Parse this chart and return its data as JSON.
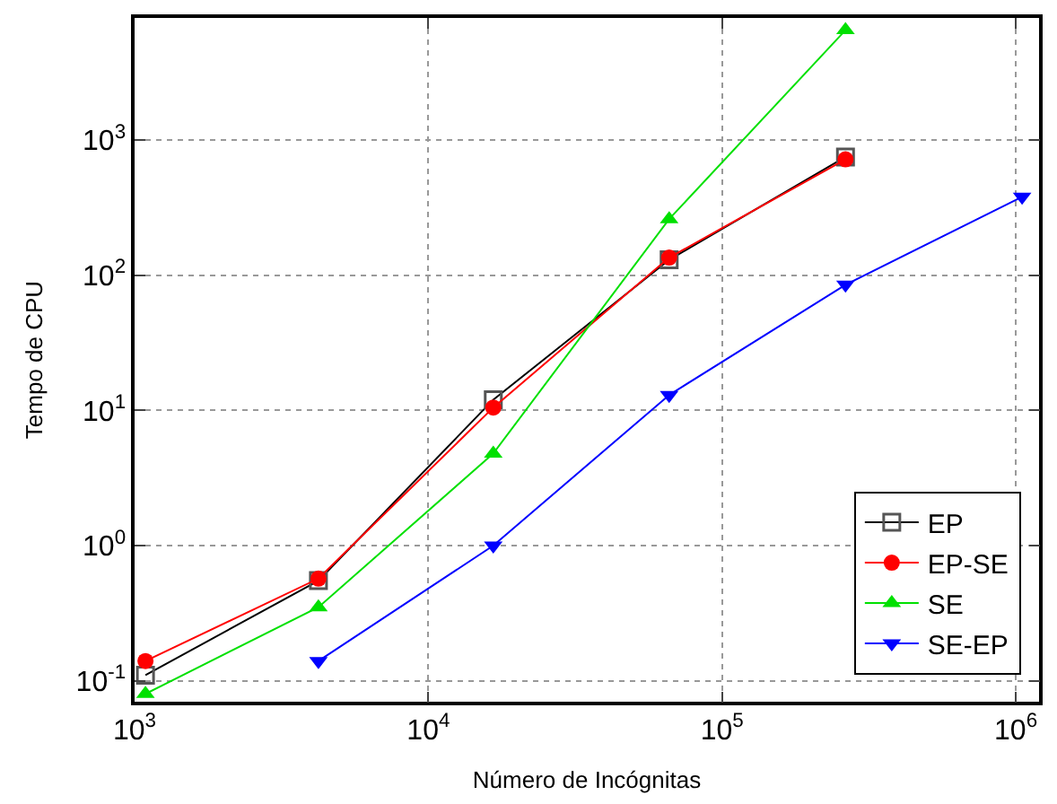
{
  "chart_data": {
    "type": "line",
    "xlabel": "Número de Incógnitas",
    "ylabel": "Tempo de CPU",
    "log": "xy",
    "grid": true,
    "legend": "bottom right",
    "xlim": [
      1000,
      1200000
    ],
    "ylim": [
      0.07,
      8000
    ],
    "xticks": [
      {
        "value": 1000,
        "label": "10$^{3}$"
      },
      {
        "value": 10000,
        "label": "10$^{4}$"
      },
      {
        "value": 100000,
        "label": "10$^{5}$"
      },
      {
        "value": 1000000,
        "label": "10$^{6}$"
      }
    ],
    "yticks": [
      {
        "value": 0.1,
        "label": "10$^{-1}$"
      },
      {
        "value": 1,
        "label": "10$^{0}$"
      },
      {
        "value": 10,
        "label": "10$^{1}$"
      },
      {
        "value": 100,
        "label": "10$^{2}$"
      },
      {
        "value": 1000,
        "label": "10$^{3}$"
      }
    ],
    "x": [
      1089,
      4225,
      16641,
      66049,
      263169,
      1050625
    ],
    "series": [
      {
        "name": "EP",
        "color": "#000000",
        "marker": "square",
        "values": [
          0.11,
          0.55,
          12,
          130,
          750,
          null
        ]
      },
      {
        "name": "EP-SE",
        "color": "#ff0000",
        "marker": "circle",
        "values": [
          0.14,
          0.57,
          10.5,
          135,
          720,
          null
        ]
      },
      {
        "name": "SE",
        "color": "#00e000",
        "marker": "triangle",
        "values": [
          0.08,
          0.35,
          4.8,
          260,
          6500,
          null
        ]
      },
      {
        "name": "SE-EP",
        "color": "#0000ff",
        "marker": "triangle-down",
        "values": [
          null,
          0.14,
          1.0,
          13,
          85,
          380
        ]
      }
    ]
  }
}
